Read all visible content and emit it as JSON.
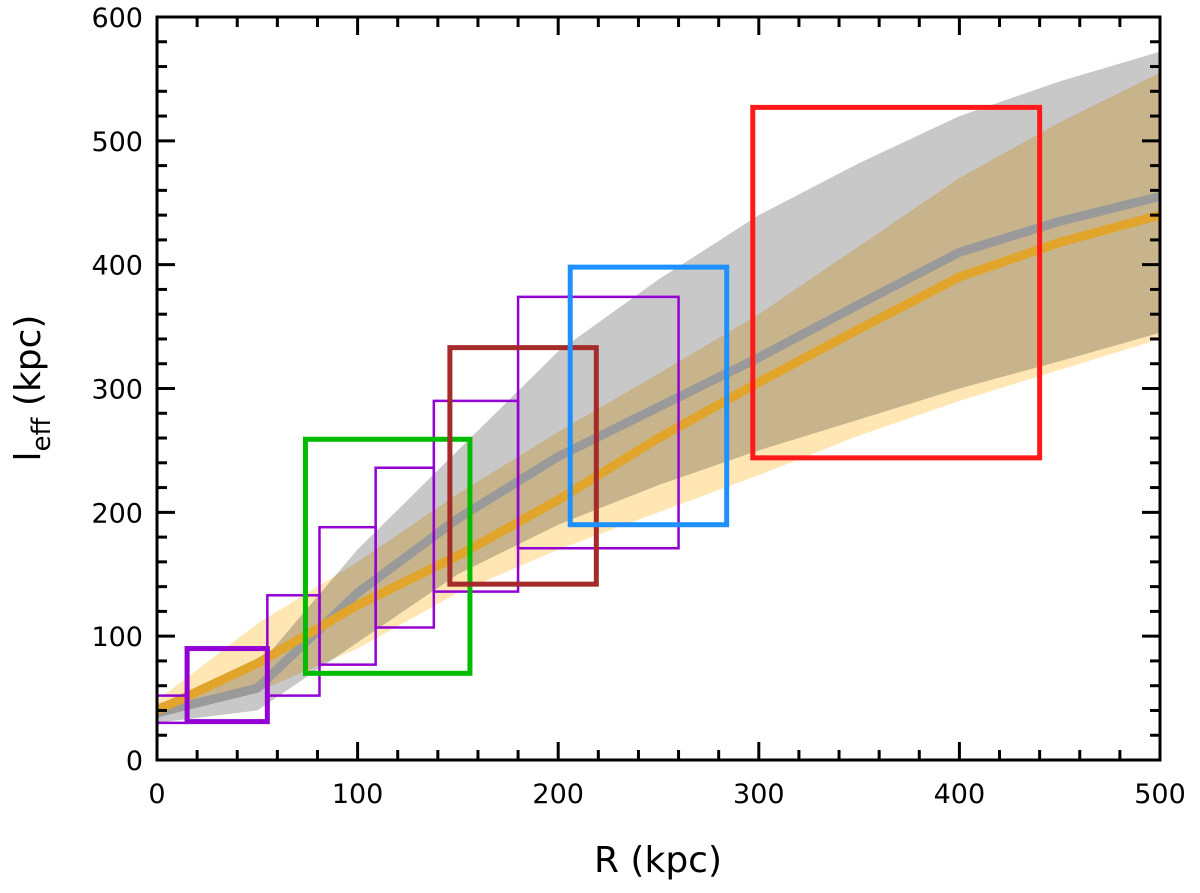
{
  "chart_data": {
    "type": "line",
    "title": "",
    "xlabel": "R (kpc)",
    "ylabel_main": "l",
    "ylabel_sub": "eff",
    "ylabel_unit": " (kpc)",
    "xlim": [
      0,
      500
    ],
    "ylim": [
      0,
      600
    ],
    "x_ticks": [
      0,
      100,
      200,
      300,
      400,
      500
    ],
    "y_ticks": [
      0,
      100,
      200,
      300,
      400,
      500,
      600
    ],
    "minor_tick_step": 20,
    "grid": false,
    "bands": [
      {
        "color": "#c8c8c8",
        "median_color": "#9a9a9a",
        "x": [
          0,
          50,
          100,
          150,
          200,
          250,
          300,
          350,
          400,
          450,
          500
        ],
        "median": [
          38,
          58,
          135,
          195,
          245,
          285,
          325,
          368,
          410,
          435,
          455
        ],
        "lower": [
          30,
          40,
          95,
          150,
          190,
          222,
          250,
          275,
          300,
          322,
          345
        ],
        "upper": [
          45,
          75,
          170,
          250,
          330,
          388,
          440,
          482,
          520,
          548,
          572
        ]
      },
      {
        "color": "#ffe6b3",
        "median_color": "#e0a52a",
        "x": [
          0,
          50,
          100,
          150,
          200,
          250,
          300,
          350,
          400,
          450,
          500
        ],
        "median": [
          40,
          78,
          125,
          165,
          210,
          260,
          305,
          348,
          390,
          418,
          440
        ],
        "lower": [
          35,
          55,
          90,
          135,
          170,
          200,
          230,
          262,
          290,
          315,
          340
        ],
        "upper": [
          48,
          110,
          160,
          215,
          265,
          312,
          360,
          415,
          470,
          515,
          555
        ]
      }
    ],
    "boxes": [
      {
        "color": "#9400d3",
        "weight": "thin",
        "x": [
          0,
          15
        ],
        "y": [
          30,
          52
        ]
      },
      {
        "color": "#9400d3",
        "weight": "thick",
        "x": [
          15,
          55
        ],
        "y": [
          31,
          90
        ]
      },
      {
        "color": "#9400d3",
        "weight": "thin",
        "x": [
          55,
          81
        ],
        "y": [
          52,
          133
        ]
      },
      {
        "color": "#9400d3",
        "weight": "thin",
        "x": [
          81,
          109
        ],
        "y": [
          77,
          188
        ]
      },
      {
        "color": "#9400d3",
        "weight": "thin",
        "x": [
          109,
          138
        ],
        "y": [
          107,
          236
        ]
      },
      {
        "color": "#9400d3",
        "weight": "thin",
        "x": [
          138,
          180
        ],
        "y": [
          136,
          290
        ]
      },
      {
        "color": "#9400d3",
        "weight": "thin",
        "x": [
          180,
          260
        ],
        "y": [
          171,
          374
        ]
      },
      {
        "color": "#00bb00",
        "weight": "thick",
        "x": [
          74,
          156
        ],
        "y": [
          70,
          259
        ]
      },
      {
        "color": "#a52a2a",
        "weight": "thick",
        "x": [
          146,
          219
        ],
        "y": [
          142,
          333
        ]
      },
      {
        "color": "#1e90ff",
        "weight": "thick",
        "x": [
          206,
          284
        ],
        "y": [
          190,
          398
        ]
      },
      {
        "color": "#ff1a1a",
        "weight": "thick",
        "x": [
          297,
          440
        ],
        "y": [
          244,
          527
        ]
      }
    ]
  }
}
